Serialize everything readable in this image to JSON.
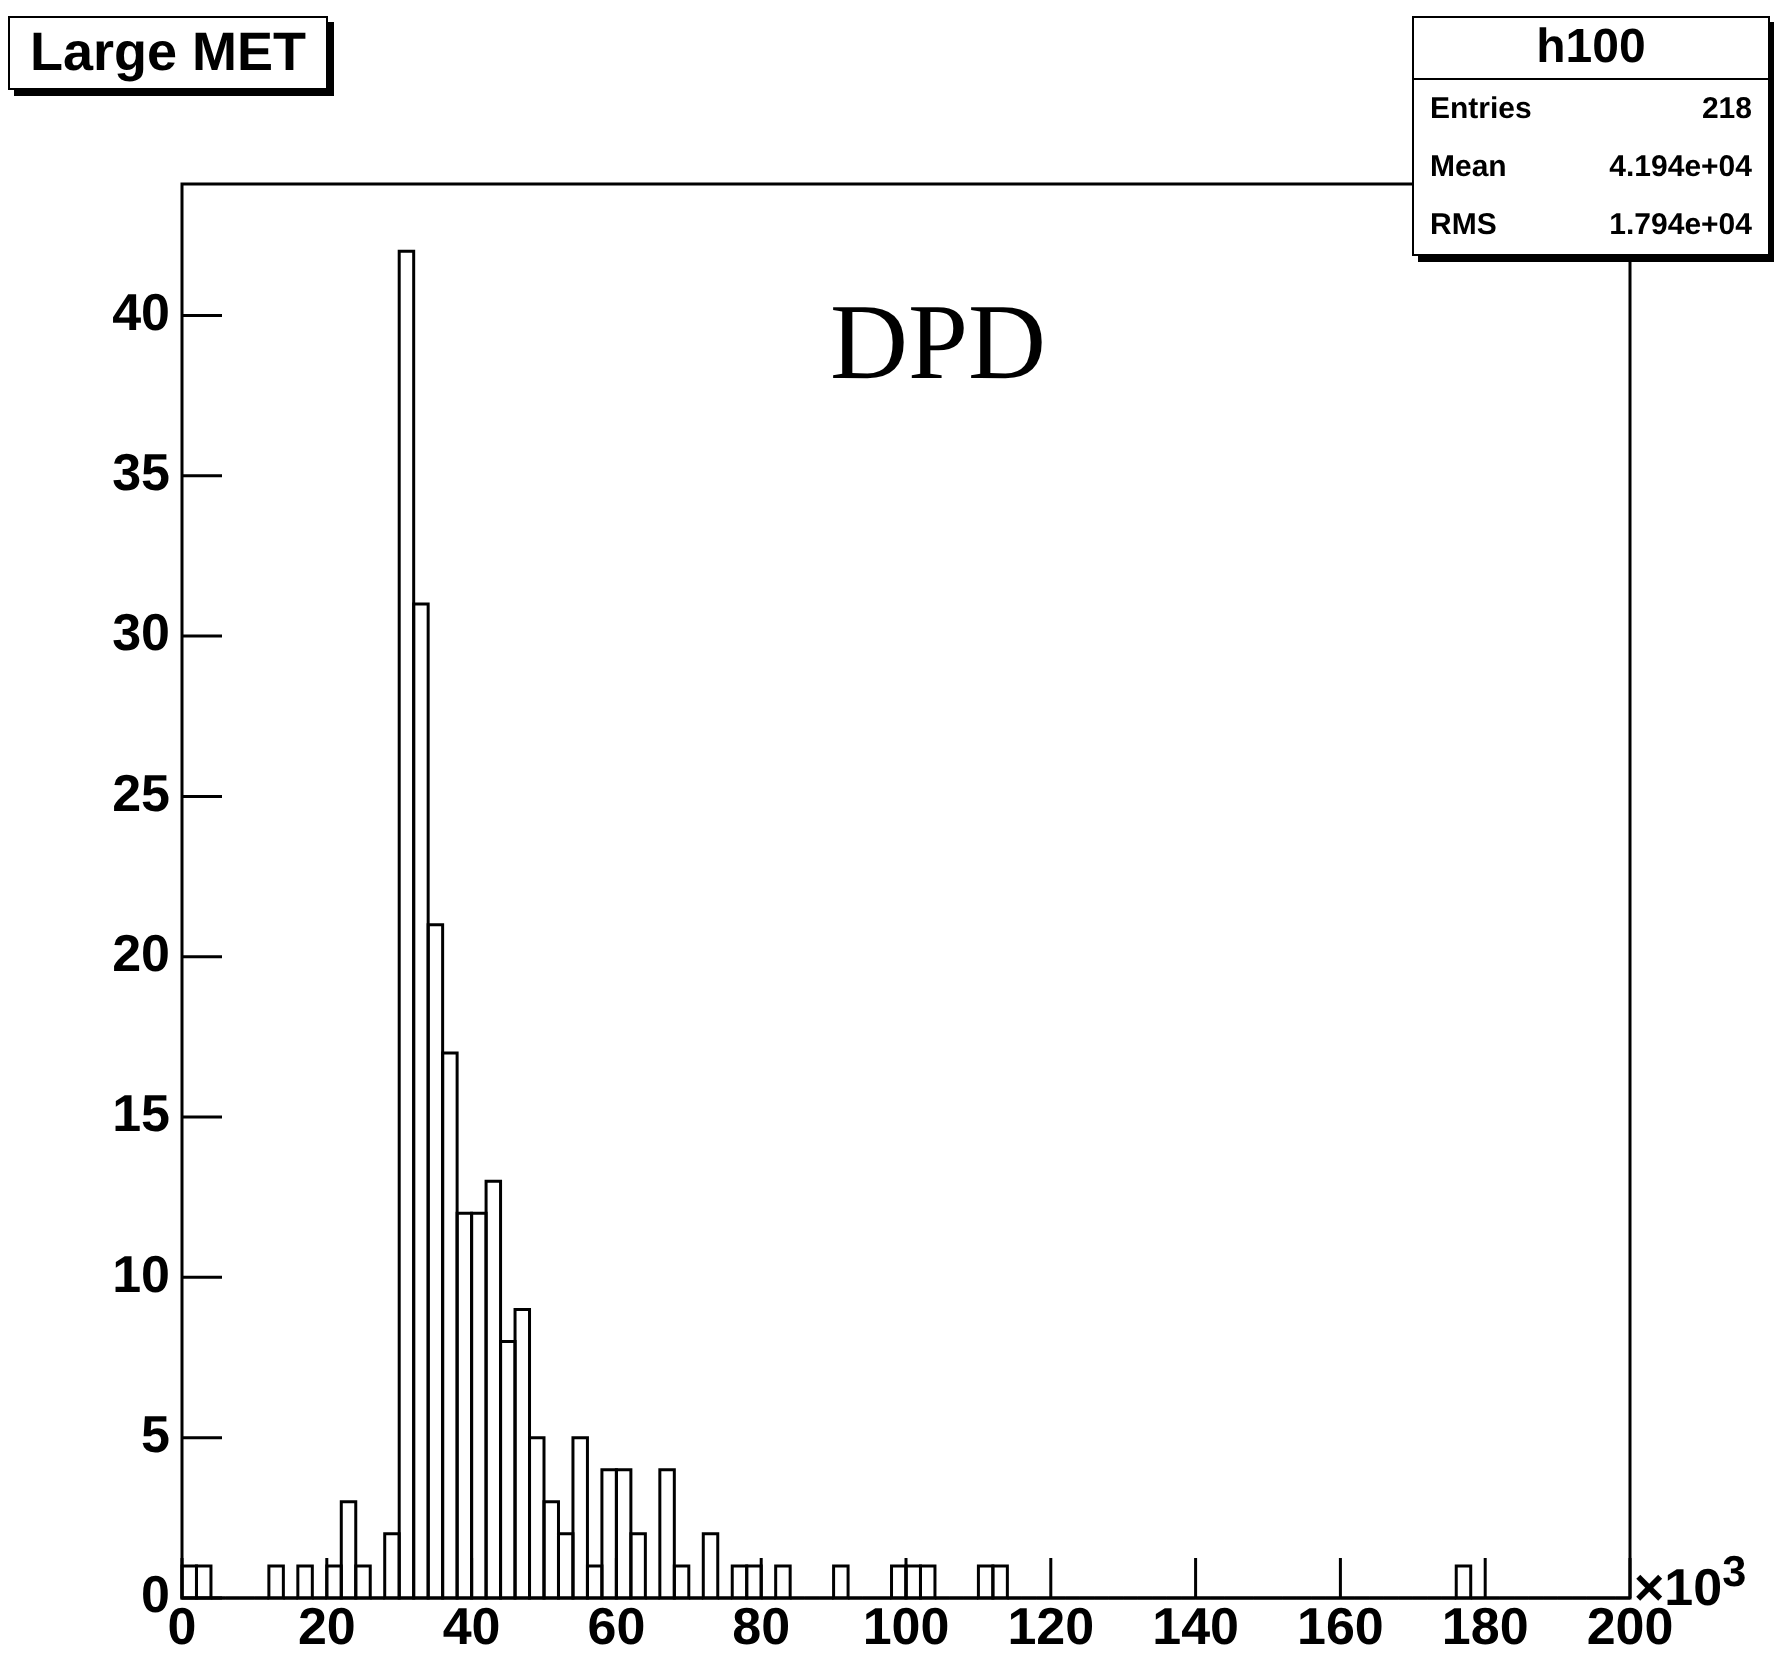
{
  "chart_data": {
    "type": "histogram",
    "title": "Large MET",
    "bins": [
      0,
      2,
      4,
      6,
      8,
      10,
      12,
      14,
      16,
      18,
      20,
      22,
      24,
      26,
      28,
      30,
      32,
      34,
      36,
      38,
      40,
      42,
      44,
      46,
      48,
      50,
      52,
      54,
      56,
      58,
      60,
      62,
      64,
      66,
      68,
      70,
      72,
      74,
      76,
      78,
      80,
      82,
      84,
      86,
      88,
      90,
      92,
      94,
      96,
      98,
      100,
      102,
      104,
      106,
      108,
      110,
      112,
      114,
      116,
      118,
      120,
      122,
      124,
      126,
      128,
      130,
      132,
      134,
      136,
      138,
      140,
      142,
      144,
      146,
      148,
      150,
      152,
      154,
      156,
      158,
      160,
      162,
      164,
      166,
      168,
      170,
      172,
      174,
      176,
      178,
      180,
      182,
      184,
      186,
      188,
      190,
      192,
      194,
      196,
      198,
      200
    ],
    "values": [
      1,
      1,
      0,
      0,
      0,
      0,
      1,
      0,
      1,
      0,
      1,
      3,
      1,
      0,
      2,
      42,
      31,
      21,
      17,
      12,
      12,
      13,
      8,
      9,
      5,
      3,
      2,
      5,
      1,
      4,
      4,
      2,
      0,
      4,
      1,
      0,
      2,
      0,
      1,
      1,
      0,
      1,
      0,
      0,
      0,
      1,
      0,
      0,
      0,
      1,
      1,
      1,
      0,
      0,
      0,
      1,
      1,
      0,
      0,
      0,
      0,
      0,
      0,
      0,
      0,
      0,
      0,
      0,
      0,
      0,
      0,
      0,
      0,
      0,
      0,
      0,
      0,
      0,
      0,
      0,
      0,
      0,
      0,
      0,
      0,
      0,
      0,
      0,
      1,
      0,
      0,
      0,
      0,
      0,
      0,
      0,
      0,
      0,
      0,
      0
    ],
    "color": "#000000",
    "xlim": [
      0,
      200
    ],
    "xticks": [
      0,
      20,
      40,
      60,
      80,
      100,
      120,
      140,
      160,
      180,
      200
    ],
    "ylim": [
      0,
      44.1
    ],
    "yticks": [
      0,
      5,
      10,
      15,
      20,
      25,
      30,
      35,
      40
    ],
    "grid": false,
    "legend": false,
    "annotations": [
      "DPD",
      "×10$^{3}$",
      "h100",
      "Entries",
      "218",
      "Mean",
      "4.194e+04",
      "RMS",
      "1.794e+04"
    ]
  }
}
